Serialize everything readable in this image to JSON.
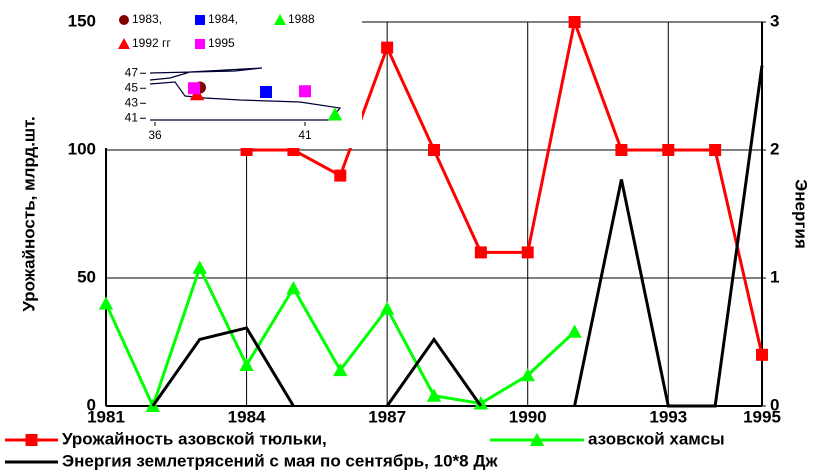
{
  "chart_data": [
    {
      "type": "line",
      "y_label": "Урожайность, млрд.шт.",
      "y2_label": "Энергия",
      "x": [
        1981,
        1982,
        1983,
        1984,
        1985,
        1986,
        1987,
        1988,
        1989,
        1990,
        1991,
        1992,
        1993,
        1994,
        1995
      ],
      "xlim": [
        1981,
        1995
      ],
      "xticks": [
        1981,
        1984,
        1987,
        1990,
        1993,
        1995
      ],
      "ylim": [
        0,
        150
      ],
      "yticks": [
        0,
        50,
        100,
        150
      ],
      "y2lim": [
        0,
        3
      ],
      "y2ticks": [
        0,
        1,
        2,
        3
      ],
      "grid": true,
      "series": [
        {
          "name": "Урожайность азовской тюльки,",
          "color": "#ff0000",
          "marker": "square",
          "values": [
            null,
            null,
            null,
            100,
            100,
            90,
            140,
            100,
            60,
            60,
            150,
            100,
            100,
            100,
            20
          ]
        },
        {
          "name": "азовской хамсы",
          "color": "#00ff00",
          "marker": "triangle",
          "values": [
            40,
            0,
            54,
            16,
            46,
            14,
            38,
            4,
            1,
            12,
            29,
            null,
            null,
            null,
            null
          ]
        },
        {
          "name": "Энергия землетрясений с мая по сентябрь, 10*8 Дж",
          "color": "#000000",
          "marker": "none",
          "axis": "y2",
          "values": [
            null,
            0,
            0.52,
            0.61,
            0,
            null,
            0,
            0.52,
            0,
            null,
            0,
            1.77,
            0,
            0,
            2.66
          ]
        }
      ]
    },
    {
      "type": "scatter",
      "xlim": [
        35.5,
        42.5
      ],
      "xticks": [
        36,
        41
      ],
      "ylim": [
        40.5,
        47.5
      ],
      "yticks": [
        47,
        45,
        43,
        41
      ],
      "series": [
        {
          "name": "1983,",
          "color": "#800000",
          "marker": "circle",
          "x": [
            37.5
          ],
          "values": [
            45.1
          ]
        },
        {
          "name": "1984,",
          "color": "#0000ff",
          "marker": "square",
          "x": [
            39.7
          ],
          "values": [
            44.5
          ]
        },
        {
          "name": "1988",
          "color": "#00ff00",
          "marker": "triangle",
          "x": [
            42
          ],
          "values": [
            41.5
          ]
        },
        {
          "name": "1992 гг",
          "color": "#ff0000",
          "marker": "triangle",
          "x": [
            37.4
          ],
          "values": [
            44.2
          ]
        },
        {
          "name": "1995",
          "color": "#ff00ff",
          "marker": "square",
          "x": [
            37.3,
            41
          ],
          "values": [
            45,
            44.6
          ]
        }
      ]
    }
  ]
}
